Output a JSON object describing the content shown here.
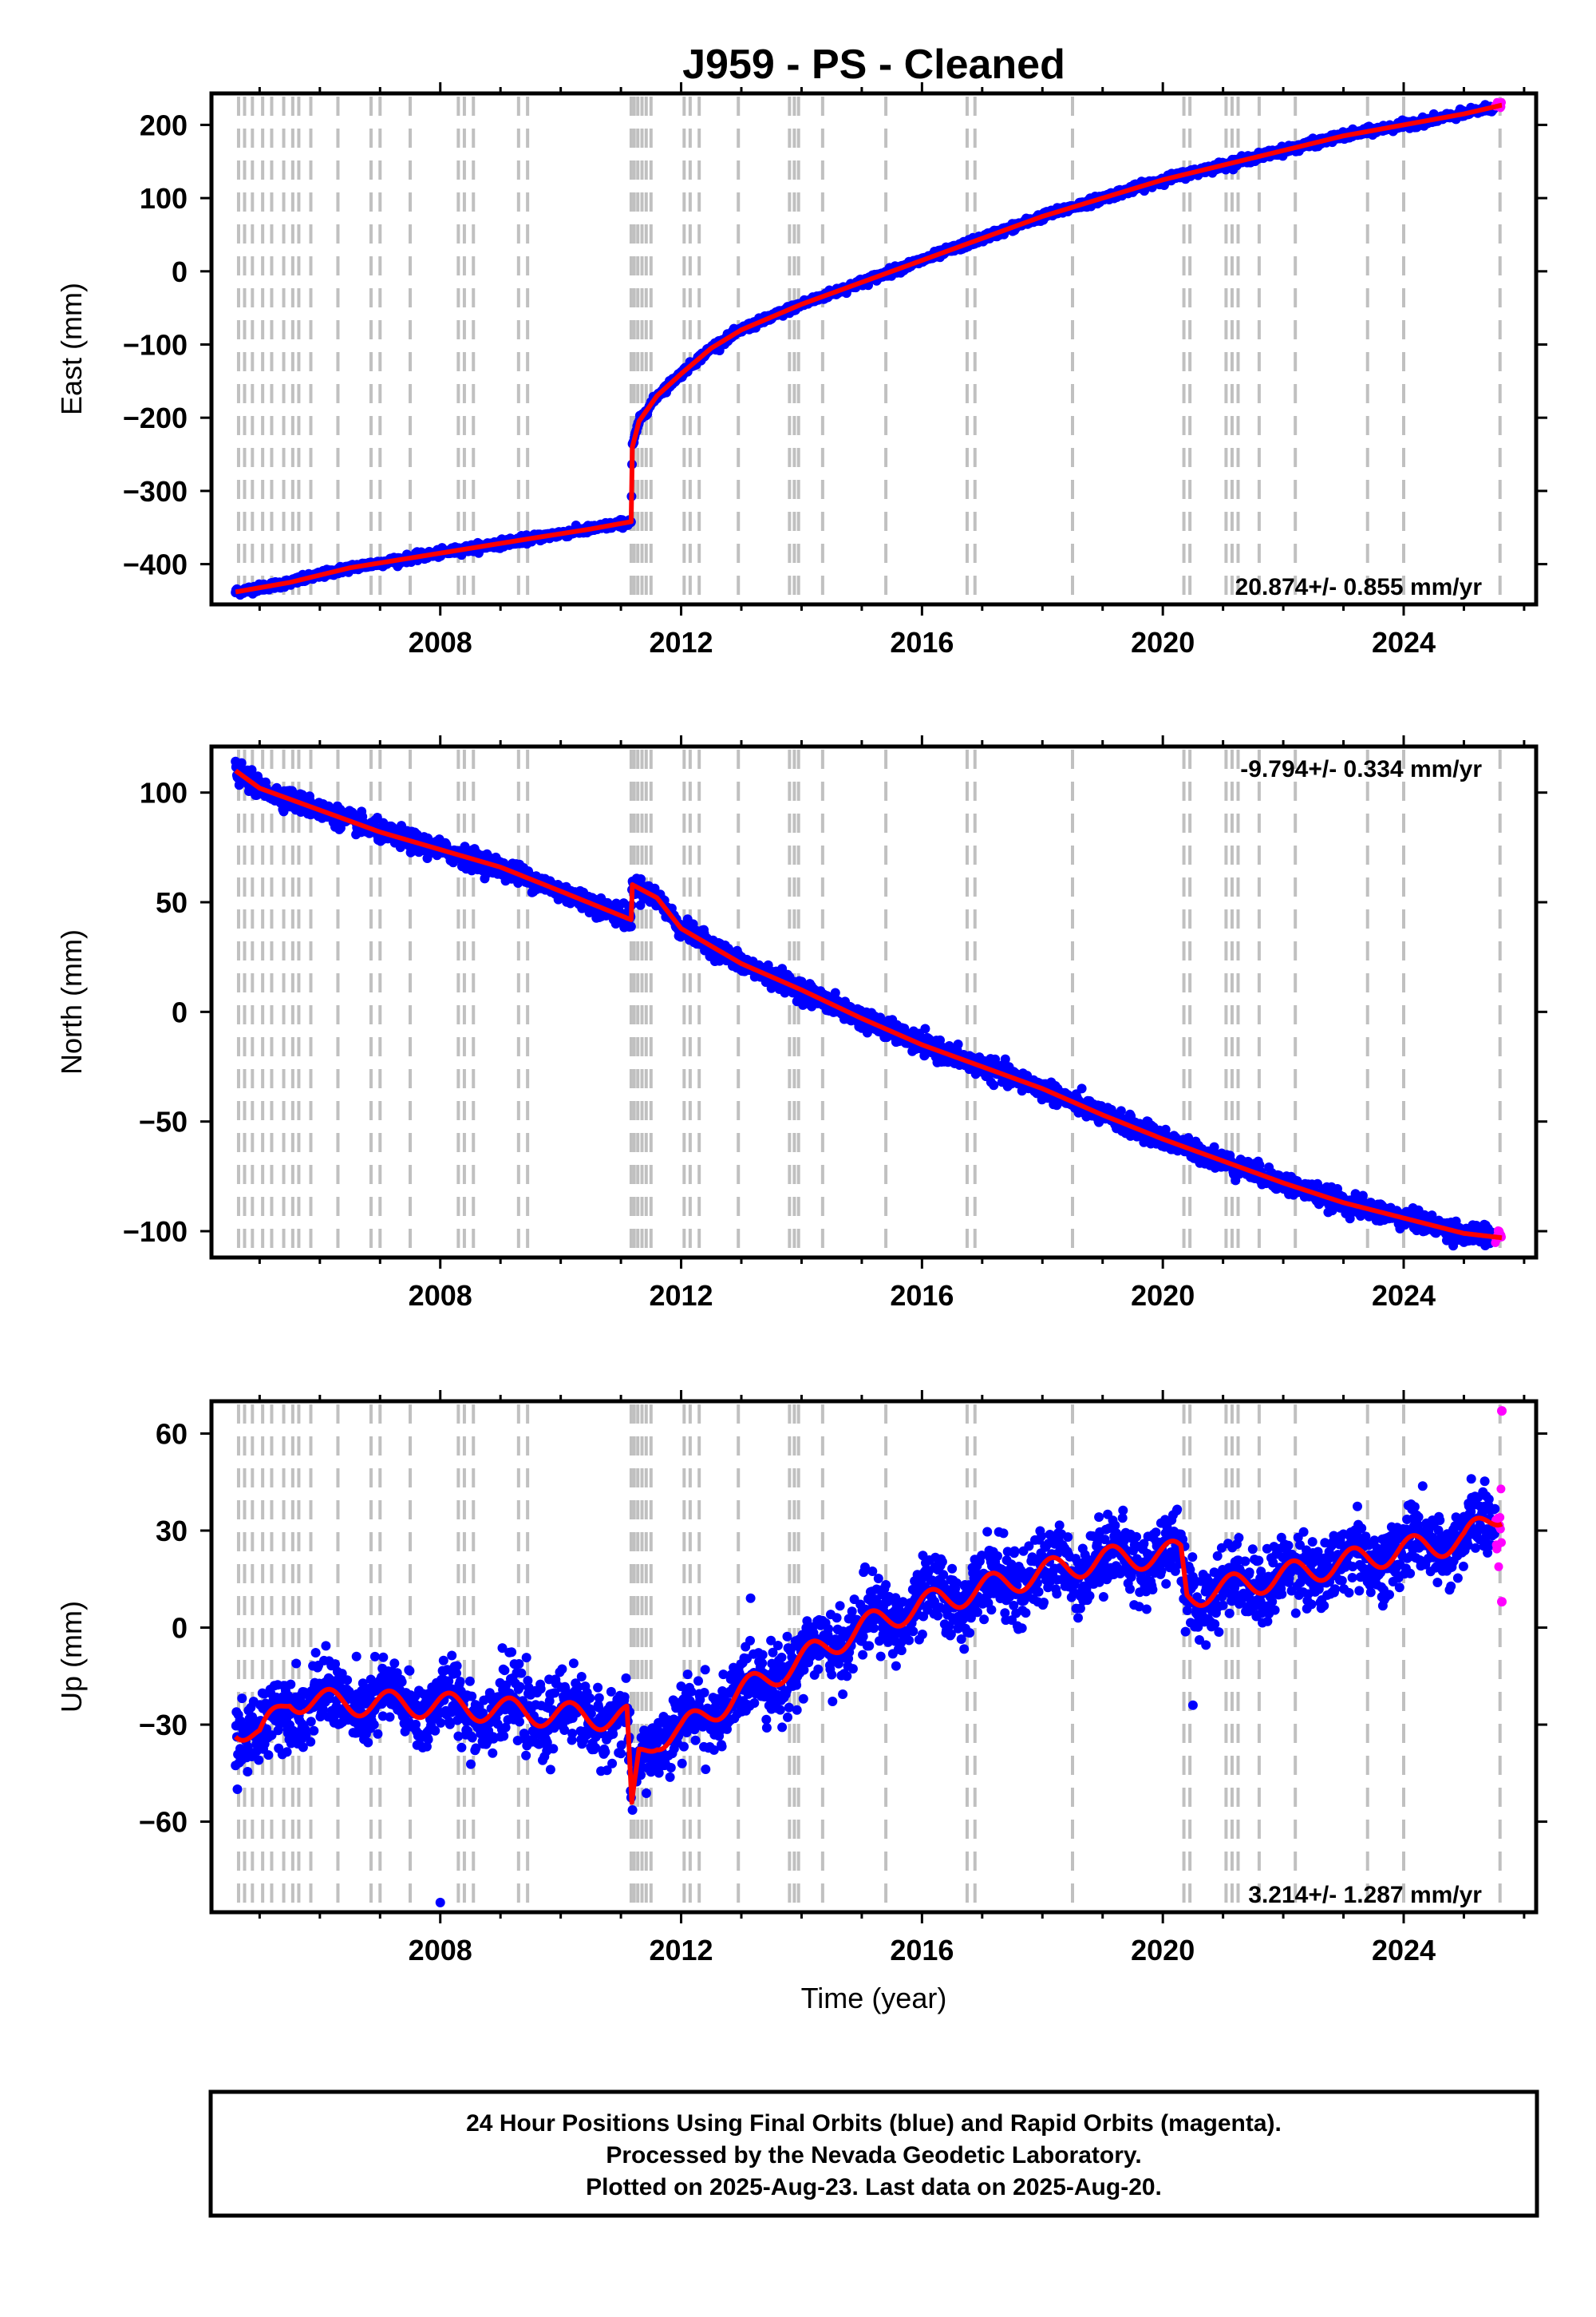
{
  "title": "J959  - PS - Cleaned",
  "xlabel": "Time (year)",
  "footer": {
    "line1": "24 Hour Positions Using Final Orbits (blue) and Rapid Orbits (magenta).",
    "line2": "Processed by the Nevada Geodetic Laboratory.",
    "line3": "Plotted on 2025-Aug-23. Last data on 2025-Aug-20."
  },
  "colors": {
    "final": "#0000ff",
    "rapid": "#ff00ff",
    "model": "#ff0000",
    "events": "#c0c0c0"
  },
  "chart_data": [
    {
      "type": "scatter",
      "component": "east",
      "ylabel": "East (mm)",
      "xlim": [
        2004.2,
        2026.2
      ],
      "ylim": [
        -455,
        243
      ],
      "xticks": [
        2008,
        2012,
        2016,
        2020,
        2024
      ],
      "yticks": [
        -400,
        -300,
        -200,
        -100,
        0,
        100,
        200
      ],
      "rate_label": "20.874+/- 0.855 mm/yr",
      "rate_label_position": "bottom-right",
      "data_start": 2004.6,
      "data_end": 2025.63,
      "noise_mm": 2.5,
      "rapid_from": 2025.52,
      "series_anchors": {
        "x": [
          2004.6,
          2005.5,
          2006.5,
          2008.0,
          2009.5,
          2010.5,
          2011.17,
          2011.19,
          2011.3,
          2011.6,
          2012.0,
          2012.5,
          2013.0,
          2014.0,
          2015.0,
          2016.0,
          2017.0,
          2018.0,
          2019.0,
          2020.0,
          2021.0,
          2022.0,
          2023.0,
          2024.0,
          2025.0,
          2025.63
        ],
        "y": [
          -438,
          -425,
          -405,
          -385,
          -365,
          -352,
          -342,
          -240,
          -205,
          -170,
          -140,
          -105,
          -80,
          -45,
          -15,
          15,
          45,
          75,
          100,
          125,
          145,
          165,
          185,
          200,
          215,
          227
        ]
      }
    },
    {
      "type": "scatter",
      "component": "north",
      "ylabel": "North (mm)",
      "xlim": [
        2004.2,
        2026.2
      ],
      "ylim": [
        -112,
        121
      ],
      "xticks": [
        2008,
        2012,
        2016,
        2020,
        2024
      ],
      "yticks": [
        -100,
        -50,
        0,
        50,
        100
      ],
      "rate_label": "-9.794+/- 0.334 mm/yr",
      "rate_label_position": "top-right",
      "data_start": 2004.6,
      "data_end": 2025.63,
      "noise_mm": 2.2,
      "rapid_from": 2025.52,
      "series_anchors": {
        "x": [
          2004.6,
          2005.0,
          2006.0,
          2007.0,
          2008.0,
          2009.0,
          2010.0,
          2011.17,
          2011.19,
          2011.6,
          2012.0,
          2013.0,
          2014.0,
          2015.0,
          2016.0,
          2017.0,
          2018.0,
          2019.0,
          2020.0,
          2021.0,
          2022.0,
          2023.0,
          2024.0,
          2025.0,
          2025.63
        ],
        "y": [
          110,
          102,
          92,
          82,
          74,
          66,
          55,
          42,
          58,
          52,
          38,
          22,
          10,
          -3,
          -15,
          -25,
          -35,
          -47,
          -58,
          -68,
          -78,
          -87,
          -94,
          -101,
          -103
        ]
      }
    },
    {
      "type": "scatter",
      "component": "up",
      "ylabel": "Up (mm)",
      "xlim": [
        2004.2,
        2026.2
      ],
      "ylim": [
        -88,
        70
      ],
      "xticks": [
        2008,
        2012,
        2016,
        2020,
        2024
      ],
      "yticks": [
        -60,
        -30,
        0,
        30,
        60
      ],
      "rate_label": "3.214+/- 1.287 mm/yr",
      "rate_label_position": "bottom-right",
      "data_start": 2004.6,
      "data_end": 2025.63,
      "noise_mm": 5.5,
      "seasonal_amplitude_mm": 4,
      "rapid_from": 2025.52,
      "series_anchors": {
        "x": [
          2004.6,
          2005.0,
          2005.5,
          2006.0,
          2008.0,
          2010.0,
          2011.1,
          2011.18,
          2011.3,
          2011.6,
          2012.0,
          2013.0,
          2014.0,
          2015.0,
          2016.0,
          2017.0,
          2018.0,
          2019.0,
          2020.3,
          2020.4,
          2021.0,
          2022.0,
          2023.0,
          2024.0,
          2025.0,
          2025.63
        ],
        "y": [
          -30,
          -34,
          -22,
          -23,
          -24,
          -27,
          -28,
          -58,
          -40,
          -34,
          -32,
          -20,
          -10,
          0,
          7,
          12,
          17,
          21,
          23,
          10,
          12,
          16,
          20,
          24,
          27,
          36
        ]
      },
      "outliers": [
        {
          "x": 2008.0,
          "y": -85
        },
        {
          "x": 2020.5,
          "y": -24
        },
        {
          "x": 2025.63,
          "y": 67
        },
        {
          "x": 2025.63,
          "y": 8
        }
      ]
    }
  ],
  "event_years": [
    2004.65,
    2004.75,
    2004.88,
    2005.05,
    2005.2,
    2005.4,
    2005.55,
    2005.65,
    2005.85,
    2006.3,
    2006.85,
    2007.0,
    2007.5,
    2008.3,
    2008.4,
    2008.55,
    2009.3,
    2009.45,
    2011.17,
    2011.22,
    2011.28,
    2011.35,
    2011.42,
    2011.5,
    2012.05,
    2012.15,
    2012.3,
    2012.95,
    2013.8,
    2013.88,
    2013.95,
    2014.35,
    2015.4,
    2016.75,
    2016.88,
    2018.5,
    2020.35,
    2020.45,
    2021.05,
    2021.15,
    2021.25,
    2021.6,
    2022.2,
    2023.4,
    2024.0,
    2025.6
  ]
}
